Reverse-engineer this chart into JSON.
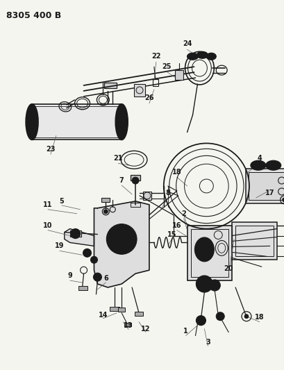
{
  "title": "8305 400 B",
  "bg_color": "#f5f5f0",
  "line_color": "#1a1a1a",
  "title_fontsize": 9,
  "label_fontsize": 7,
  "fig_width": 4.1,
  "fig_height": 5.33,
  "dpi": 100
}
